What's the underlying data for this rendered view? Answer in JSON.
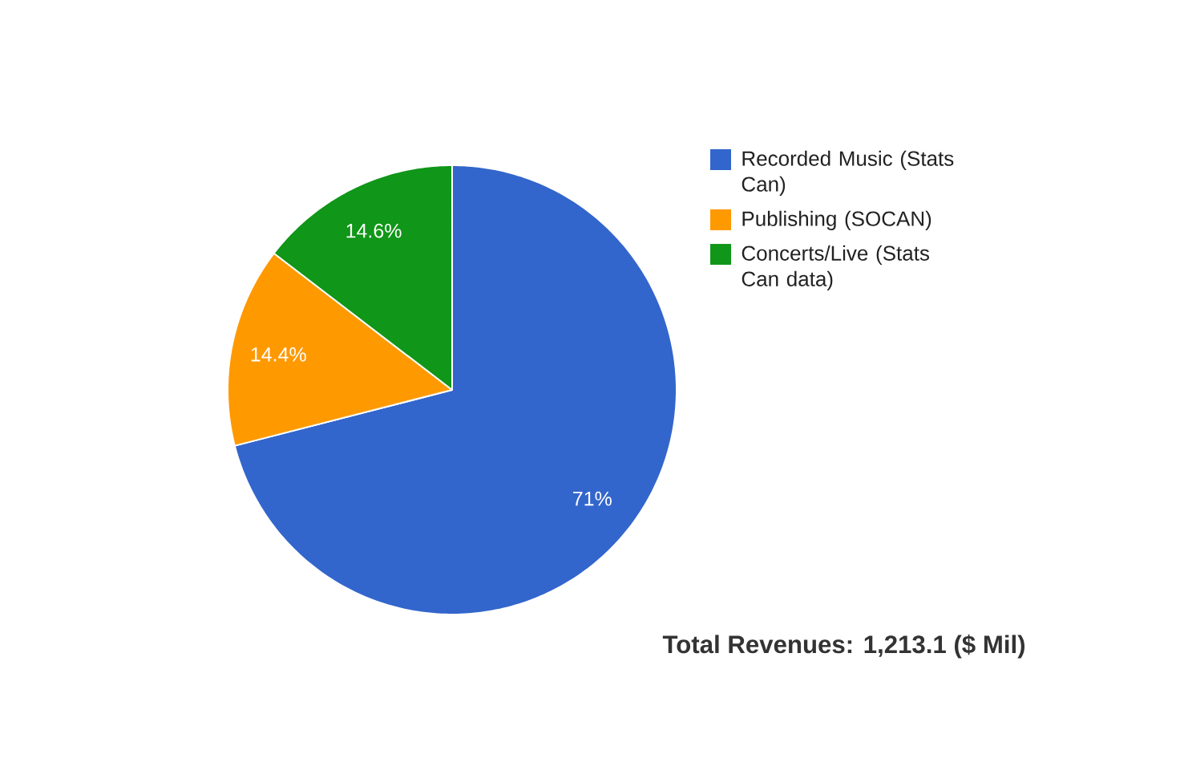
{
  "chart_data": {
    "type": "pie",
    "categories": [
      "Recorded Music (Stats Can)",
      "Publishing (SOCAN)",
      "Concerts/Live (Stats Can data)"
    ],
    "values": [
      71,
      14.4,
      14.6
    ],
    "colors": [
      "#3366cc",
      "#ff9900",
      "#109618"
    ],
    "value_labels": [
      "71%",
      "14.4%",
      "14.6%"
    ],
    "legend": "right",
    "annotations": [
      "Total Revenues: 1,213.1 ($ Mil)"
    ]
  }
}
